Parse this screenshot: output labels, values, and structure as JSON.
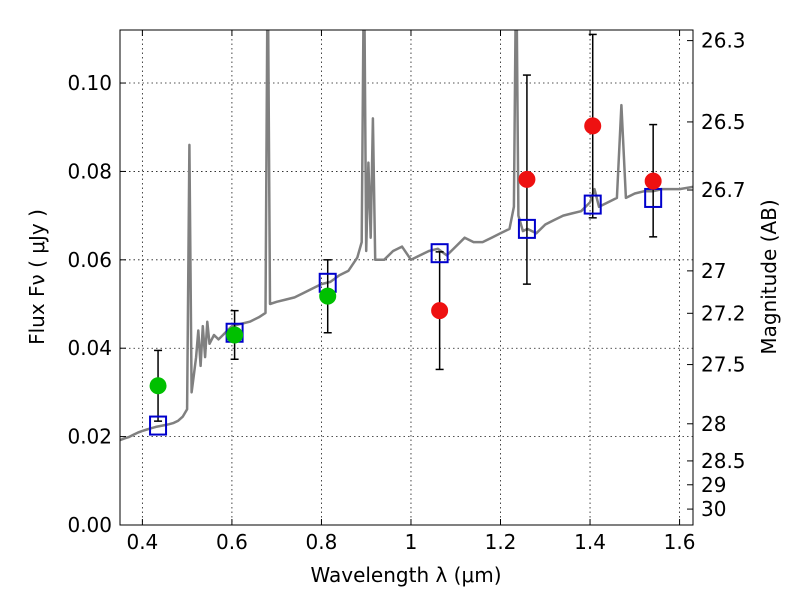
{
  "chart_data": {
    "type": "scatter",
    "xlabel": "Wavelength  λ (μm)",
    "ylabel": "Flux  Fν  ( μJy )",
    "y2label": "Magnitude (AB)",
    "xlim": [
      0.35,
      1.63
    ],
    "ylim": [
      0.0,
      0.112
    ],
    "grid": true,
    "x_ticks": [
      0.4,
      0.6,
      0.8,
      1.0,
      1.2,
      1.4,
      1.6
    ],
    "x_tick_labels": [
      "0.4",
      "0.6",
      "0.8",
      "1",
      "1.2",
      "1.4",
      "1.6"
    ],
    "y_ticks": [
      0.0,
      0.02,
      0.04,
      0.06,
      0.08,
      0.1
    ],
    "y_tick_labels": [
      "0.00",
      "0.02",
      "0.04",
      "0.06",
      "0.08",
      "0.10"
    ],
    "y2_ticks": [
      {
        "label": "26.3",
        "flux": 0.1096
      },
      {
        "label": "26.5",
        "flux": 0.0912
      },
      {
        "label": "26.7",
        "flux": 0.0758
      },
      {
        "label": "27",
        "flux": 0.0575
      },
      {
        "label": "27.2",
        "flux": 0.0479
      },
      {
        "label": "27.5",
        "flux": 0.0363
      },
      {
        "label": "28",
        "flux": 0.0229
      },
      {
        "label": "28.5",
        "flux": 0.0145
      },
      {
        "label": "29",
        "flux": 0.0091
      },
      {
        "label": "30",
        "flux": 0.0036
      }
    ],
    "series": [
      {
        "kind": "spectrum",
        "color": "#808080",
        "points": [
          [
            0.35,
            0.0192
          ],
          [
            0.36,
            0.0196
          ],
          [
            0.37,
            0.0199
          ],
          [
            0.38,
            0.0204
          ],
          [
            0.39,
            0.0209
          ],
          [
            0.4,
            0.0213
          ],
          [
            0.41,
            0.0216
          ],
          [
            0.42,
            0.0219
          ],
          [
            0.43,
            0.0222
          ],
          [
            0.44,
            0.0224
          ],
          [
            0.45,
            0.0226
          ],
          [
            0.46,
            0.0228
          ],
          [
            0.47,
            0.0231
          ],
          [
            0.48,
            0.0236
          ],
          [
            0.49,
            0.0245
          ],
          [
            0.5,
            0.0262
          ],
          [
            0.505,
            0.086
          ],
          [
            0.51,
            0.03
          ],
          [
            0.515,
            0.034
          ],
          [
            0.52,
            0.038
          ],
          [
            0.525,
            0.044
          ],
          [
            0.53,
            0.036
          ],
          [
            0.535,
            0.045
          ],
          [
            0.54,
            0.038
          ],
          [
            0.545,
            0.046
          ],
          [
            0.55,
            0.041
          ],
          [
            0.56,
            0.043
          ],
          [
            0.57,
            0.042
          ],
          [
            0.58,
            0.043
          ],
          [
            0.59,
            0.044
          ],
          [
            0.6,
            0.045
          ],
          [
            0.62,
            0.0455
          ],
          [
            0.64,
            0.046
          ],
          [
            0.66,
            0.047
          ],
          [
            0.675,
            0.048
          ],
          [
            0.68,
            0.13
          ],
          [
            0.685,
            0.05
          ],
          [
            0.7,
            0.0505
          ],
          [
            0.72,
            0.051
          ],
          [
            0.74,
            0.0515
          ],
          [
            0.76,
            0.0525
          ],
          [
            0.78,
            0.0535
          ],
          [
            0.8,
            0.0545
          ],
          [
            0.82,
            0.055
          ],
          [
            0.84,
            0.0565
          ],
          [
            0.86,
            0.0575
          ],
          [
            0.88,
            0.0605
          ],
          [
            0.89,
            0.064
          ],
          [
            0.895,
            0.13
          ],
          [
            0.9,
            0.062
          ],
          [
            0.905,
            0.082
          ],
          [
            0.91,
            0.065
          ],
          [
            0.915,
            0.092
          ],
          [
            0.92,
            0.06
          ],
          [
            0.94,
            0.06
          ],
          [
            0.96,
            0.062
          ],
          [
            0.98,
            0.063
          ],
          [
            1.0,
            0.06
          ],
          [
            1.02,
            0.061
          ],
          [
            1.04,
            0.062
          ],
          [
            1.06,
            0.0625
          ],
          [
            1.08,
            0.061
          ],
          [
            1.1,
            0.063
          ],
          [
            1.12,
            0.065
          ],
          [
            1.14,
            0.064
          ],
          [
            1.16,
            0.064
          ],
          [
            1.18,
            0.065
          ],
          [
            1.2,
            0.066
          ],
          [
            1.22,
            0.067
          ],
          [
            1.23,
            0.072
          ],
          [
            1.235,
            0.13
          ],
          [
            1.24,
            0.07
          ],
          [
            1.25,
            0.0665
          ],
          [
            1.26,
            0.067
          ],
          [
            1.28,
            0.066
          ],
          [
            1.3,
            0.068
          ],
          [
            1.32,
            0.069
          ],
          [
            1.34,
            0.07
          ],
          [
            1.36,
            0.0705
          ],
          [
            1.38,
            0.071
          ],
          [
            1.4,
            0.073
          ],
          [
            1.41,
            0.076
          ],
          [
            1.42,
            0.072
          ],
          [
            1.44,
            0.073
          ],
          [
            1.46,
            0.074
          ],
          [
            1.47,
            0.095
          ],
          [
            1.48,
            0.074
          ],
          [
            1.5,
            0.075
          ],
          [
            1.52,
            0.0755
          ],
          [
            1.54,
            0.0755
          ],
          [
            1.56,
            0.076
          ],
          [
            1.58,
            0.076
          ],
          [
            1.6,
            0.076
          ],
          [
            1.63,
            0.0765
          ]
        ]
      },
      {
        "kind": "model_photometry",
        "marker": "open-square",
        "color": "#0000cc",
        "points": [
          {
            "x": 0.435,
            "y": 0.0225
          },
          {
            "x": 0.606,
            "y": 0.0435
          },
          {
            "x": 0.814,
            "y": 0.0548
          },
          {
            "x": 1.064,
            "y": 0.0615
          },
          {
            "x": 1.259,
            "y": 0.067
          },
          {
            "x": 1.406,
            "y": 0.0725
          },
          {
            "x": 1.541,
            "y": 0.074
          }
        ]
      },
      {
        "kind": "observed_photometry",
        "marker": "filled-circle",
        "color": "#00c000",
        "points": [
          {
            "x": 0.435,
            "y": 0.0315,
            "err_low": 0.0235,
            "err_high": 0.0395
          },
          {
            "x": 0.606,
            "y": 0.043,
            "err_low": 0.0375,
            "err_high": 0.0485
          },
          {
            "x": 0.814,
            "y": 0.0518,
            "err_low": 0.0435,
            "err_high": 0.06
          }
        ]
      },
      {
        "kind": "observed_photometry",
        "marker": "filled-circle",
        "color": "#ee1111",
        "points": [
          {
            "x": 1.064,
            "y": 0.0485,
            "err_low": 0.0352,
            "err_high": 0.0618
          },
          {
            "x": 1.259,
            "y": 0.0782,
            "err_low": 0.0545,
            "err_high": 0.1018
          },
          {
            "x": 1.406,
            "y": 0.0903,
            "err_low": 0.0695,
            "err_high": 0.111
          },
          {
            "x": 1.541,
            "y": 0.0778,
            "err_low": 0.0652,
            "err_high": 0.0906
          }
        ]
      }
    ]
  }
}
